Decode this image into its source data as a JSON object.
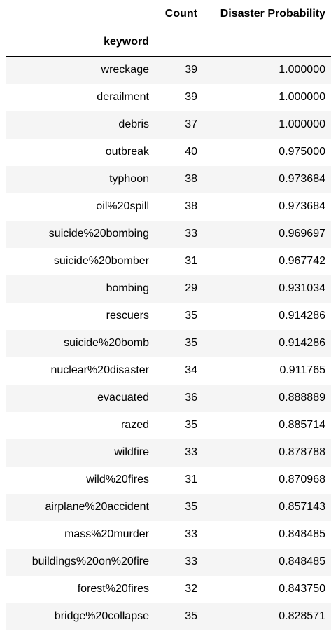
{
  "table": {
    "columns": [
      "Count",
      "Disaster Probability"
    ],
    "index_name": "keyword",
    "rows": [
      {
        "keyword": "wreckage",
        "count": "39",
        "prob": "1.000000"
      },
      {
        "keyword": "derailment",
        "count": "39",
        "prob": "1.000000"
      },
      {
        "keyword": "debris",
        "count": "37",
        "prob": "1.000000"
      },
      {
        "keyword": "outbreak",
        "count": "40",
        "prob": "0.975000"
      },
      {
        "keyword": "typhoon",
        "count": "38",
        "prob": "0.973684"
      },
      {
        "keyword": "oil%20spill",
        "count": "38",
        "prob": "0.973684"
      },
      {
        "keyword": "suicide%20bombing",
        "count": "33",
        "prob": "0.969697"
      },
      {
        "keyword": "suicide%20bomber",
        "count": "31",
        "prob": "0.967742"
      },
      {
        "keyword": "bombing",
        "count": "29",
        "prob": "0.931034"
      },
      {
        "keyword": "rescuers",
        "count": "35",
        "prob": "0.914286"
      },
      {
        "keyword": "suicide%20bomb",
        "count": "35",
        "prob": "0.914286"
      },
      {
        "keyword": "nuclear%20disaster",
        "count": "34",
        "prob": "0.911765"
      },
      {
        "keyword": "evacuated",
        "count": "36",
        "prob": "0.888889"
      },
      {
        "keyword": "razed",
        "count": "35",
        "prob": "0.885714"
      },
      {
        "keyword": "wildfire",
        "count": "33",
        "prob": "0.878788"
      },
      {
        "keyword": "wild%20fires",
        "count": "31",
        "prob": "0.870968"
      },
      {
        "keyword": "airplane%20accident",
        "count": "35",
        "prob": "0.857143"
      },
      {
        "keyword": "mass%20murder",
        "count": "33",
        "prob": "0.848485"
      },
      {
        "keyword": "buildings%20on%20fire",
        "count": "33",
        "prob": "0.848485"
      },
      {
        "keyword": "forest%20fires",
        "count": "32",
        "prob": "0.843750"
      },
      {
        "keyword": "bridge%20collapse",
        "count": "35",
        "prob": "0.828571"
      }
    ]
  }
}
